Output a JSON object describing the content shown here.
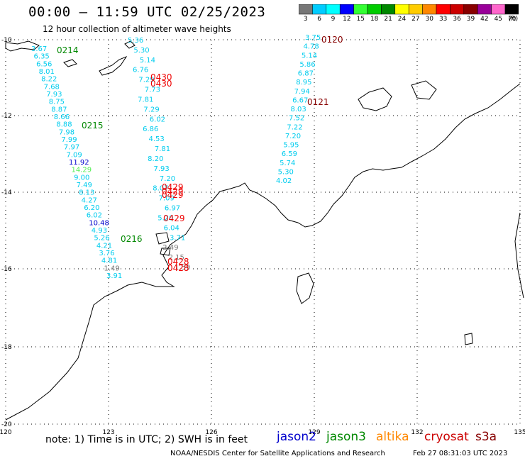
{
  "header": {
    "title": "00:00 – 11:59 UTC 02/25/2023",
    "subtitle": "12 hour collection of altimeter wave heights"
  },
  "legend": {
    "unit": "(ft)",
    "stops": [
      {
        "label": "3",
        "color": "#777777"
      },
      {
        "label": "6",
        "color": "#00ccff"
      },
      {
        "label": "9",
        "color": "#00ffff"
      },
      {
        "label": "12",
        "color": "#0000ff"
      },
      {
        "label": "15",
        "color": "#33ff33"
      },
      {
        "label": "18",
        "color": "#00cc00"
      },
      {
        "label": "21",
        "color": "#008800"
      },
      {
        "label": "24",
        "color": "#ffff00"
      },
      {
        "label": "27",
        "color": "#ffcc00"
      },
      {
        "label": "30",
        "color": "#ff8800"
      },
      {
        "label": "33",
        "color": "#ff0000"
      },
      {
        "label": "36",
        "color": "#cc0000"
      },
      {
        "label": "39",
        "color": "#880000"
      },
      {
        "label": "42",
        "color": "#990099"
      },
      {
        "label": "45",
        "color": "#ff66cc"
      },
      {
        "label": "70",
        "color": "#000000"
      }
    ]
  },
  "axes": {
    "lat_labels": [
      "-10",
      "-12",
      "-14",
      "-16",
      "-18",
      "-20"
    ],
    "lon_labels": [
      "120",
      "123",
      "126",
      "129",
      "132",
      "135"
    ]
  },
  "tracks": [
    {
      "values": [
        "3.67",
        "6.35",
        "6.56",
        "8.01",
        "8.22",
        "7.68",
        "7.93",
        "8.75",
        "8.87",
        "8.66",
        "8.88",
        "7.98",
        "7.99",
        "7.97",
        "7.09",
        "11.92",
        "14.29",
        "9.00",
        "7.49",
        "8.13",
        "4.27",
        "6.20",
        "6.02",
        "10.48",
        "4.93",
        "5.26",
        "4.21",
        "3.76",
        "4.81",
        "1.49",
        "3.91"
      ]
    },
    {
      "values": [
        "5.36",
        "5.30",
        "5.14",
        "6.76",
        "7.29",
        "7.73",
        "7.81",
        "7.29",
        "6.02",
        "6.86",
        "4.53",
        "7.81",
        "8.20",
        "7.93",
        "7.20",
        "8.07",
        "7.09",
        "6.97",
        "5.20",
        "6.04",
        "3.71",
        "2.49",
        "2.15",
        "1.59"
      ]
    },
    {
      "values": [
        "3.75",
        "4.78",
        "5.14",
        "5.86",
        "6.87",
        "8.95",
        "7.94",
        "6.67",
        "8.03",
        "7.52",
        "7.22",
        "7.20",
        "5.95",
        "6.59",
        "5.74",
        "5.30",
        "4.02"
      ]
    }
  ],
  "time_labels": [
    "0214",
    "0215",
    "0216",
    "0120",
    "0121",
    "0430",
    "0430",
    "0429",
    "0429",
    "0429",
    "0429",
    "0428",
    "0428"
  ],
  "footer": {
    "note": "note:  1) Time is in UTC;  2) SWH is in feet",
    "credit": "NOAA/NESDIS Center for Satellite Applications and Research",
    "date": "Feb 27 08:31:03 UTC 2023",
    "satellites": [
      {
        "name": "jason2",
        "color": "#0000cc"
      },
      {
        "name": "jason3",
        "color": "#008800"
      },
      {
        "name": "altika",
        "color": "#ff8800"
      },
      {
        "name": "cryosat",
        "color": "#cc0000"
      },
      {
        "name": "s3a",
        "color": "#880000"
      }
    ]
  }
}
